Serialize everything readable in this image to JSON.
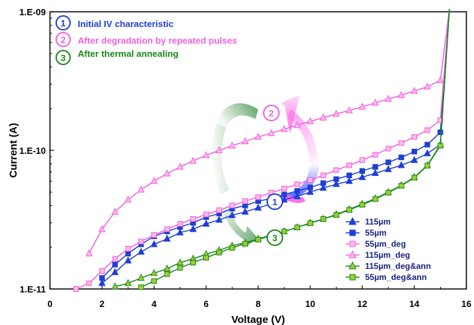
{
  "chart_data": {
    "type": "scatter",
    "xlabel": "Voltage (V)",
    "ylabel": "Current (A)",
    "xlim": [
      0,
      16
    ],
    "ylim": [
      1e-11,
      1e-09
    ],
    "y_scale": "log",
    "x_ticks": [
      "0",
      "2",
      "4",
      "6",
      "8",
      "10",
      "12",
      "14",
      "16"
    ],
    "y_ticks": [
      "1.E-11",
      "1.E-10",
      "1.E-09"
    ],
    "grid": false,
    "legend_position": "bottom-right",
    "annotations": [
      {
        "number": "1",
        "text": "Initial IV characteristic",
        "color": "#1f3fd6"
      },
      {
        "number": "2",
        "text": "After degradation by repeated pulses",
        "color": "#f060e0"
      },
      {
        "number": "3",
        "text": "After thermal annealing",
        "color": "#1a8a1a"
      }
    ],
    "series": [
      {
        "name": "115µm",
        "marker": "triangle",
        "color": "#1f3fd6",
        "fill": "#1f3fd6",
        "x": [
          2.0,
          2.5,
          3.0,
          3.5,
          4.0,
          4.5,
          5.0,
          5.5,
          6.0,
          6.5,
          7.0,
          7.5,
          8.0,
          8.5,
          9.0,
          9.5,
          10.0,
          10.5,
          11.0,
          11.5,
          12.0,
          12.5,
          13.0,
          13.5,
          14.0,
          14.5,
          15.0
        ],
        "y": [
          1.1e-11,
          1.32e-11,
          1.6e-11,
          1.85e-11,
          2.1e-11,
          2.3e-11,
          2.55e-11,
          2.7e-11,
          2.95e-11,
          3.15e-11,
          3.4e-11,
          3.6e-11,
          3.85e-11,
          4.1e-11,
          4.4e-11,
          4.65e-11,
          5e-11,
          5.35e-11,
          5.7e-11,
          6e-11,
          6.4e-11,
          6.85e-11,
          7.3e-11,
          7.8e-11,
          8.5e-11,
          9.5e-11,
          1.1e-10
        ]
      },
      {
        "name": "55µm",
        "marker": "square",
        "color": "#1f3fd6",
        "fill": "#1f3fd6",
        "x": [
          2.0,
          2.5,
          3.0,
          3.5,
          4.0,
          4.5,
          5.0,
          5.5,
          6.0,
          6.5,
          7.0,
          7.5,
          8.0,
          8.5,
          9.0,
          9.5,
          10.0,
          10.5,
          11.0,
          11.5,
          12.0,
          12.5,
          13.0,
          13.5,
          14.0,
          14.5,
          15.0
        ],
        "y": [
          1.2e-11,
          1.5e-11,
          1.8e-11,
          2.1e-11,
          2.4e-11,
          2.6e-11,
          2.8e-11,
          3e-11,
          3.3e-11,
          3.5e-11,
          3.8e-11,
          4e-11,
          4.3e-11,
          4.5e-11,
          4.8e-11,
          5.1e-11,
          5.4e-11,
          5.8e-11,
          6.2e-11,
          6.6e-11,
          7.1e-11,
          7.6e-11,
          8.2e-11,
          8.9e-11,
          9.8e-11,
          1.1e-10,
          1.35e-10
        ]
      },
      {
        "name": "55µm_deg",
        "marker": "square",
        "color": "#f060e0",
        "fill": "#ffb8e8",
        "x": [
          1.0,
          1.5,
          2.0,
          2.5,
          3.0,
          3.5,
          4.0,
          4.5,
          5.0,
          5.5,
          6.0,
          6.5,
          7.0,
          7.5,
          8.0,
          8.5,
          9.0,
          9.5,
          10.0,
          10.5,
          11.0,
          11.5,
          12.0,
          12.5,
          13.0,
          13.5,
          14.0,
          14.5,
          15.0
        ],
        "y": [
          1e-11,
          1.1e-11,
          1.35e-11,
          1.65e-11,
          1.95e-11,
          2.2e-11,
          2.45e-11,
          2.7e-11,
          2.95e-11,
          3.2e-11,
          3.45e-11,
          3.7e-11,
          4e-11,
          4.3e-11,
          4.6e-11,
          4.95e-11,
          5.3e-11,
          5.7e-11,
          6.1e-11,
          6.6e-11,
          7.2e-11,
          7.8e-11,
          8.5e-11,
          9.3e-11,
          1.03e-10,
          1.13e-10,
          1.25e-10,
          1.4e-10,
          1.65e-10
        ]
      },
      {
        "name": "115µm_deg",
        "marker": "triangle",
        "color": "#f060e0",
        "fill": "#ffb8e8",
        "x": [
          1.5,
          2.0,
          2.5,
          3.0,
          3.5,
          4.0,
          4.5,
          5.0,
          5.5,
          6.0,
          6.5,
          7.0,
          7.5,
          8.0,
          8.5,
          9.0,
          9.5,
          10.0,
          10.5,
          11.0,
          11.5,
          12.0,
          12.5,
          13.0,
          13.5,
          14.0,
          14.5,
          15.0
        ],
        "y": [
          1.8e-11,
          2.7e-11,
          3.6e-11,
          4.4e-11,
          5.2e-11,
          6e-11,
          6.8e-11,
          7.6e-11,
          8.4e-11,
          9.2e-11,
          1e-10,
          1.08e-10,
          1.16e-10,
          1.25e-10,
          1.33e-10,
          1.42e-10,
          1.52e-10,
          1.62e-10,
          1.72e-10,
          1.83e-10,
          1.94e-10,
          2.06e-10,
          2.2e-10,
          2.35e-10,
          2.5e-10,
          2.68e-10,
          2.88e-10,
          3.2e-10
        ]
      },
      {
        "name": "115µm_deg&ann",
        "marker": "triangle",
        "color": "#1a8a1a",
        "fill": "#9acd32",
        "x": [
          2.5,
          3.0,
          3.5,
          4.0,
          4.5,
          5.0,
          5.5,
          6.0,
          6.5,
          7.0,
          7.5,
          8.0,
          8.5,
          9.0,
          9.5,
          10.0,
          10.5,
          11.0,
          11.5,
          12.0,
          12.5,
          13.0,
          13.5,
          14.0,
          14.5,
          15.0
        ],
        "y": [
          1.04e-11,
          1.1e-11,
          1.2e-11,
          1.3e-11,
          1.4e-11,
          1.55e-11,
          1.65e-11,
          1.78e-11,
          1.9e-11,
          2.05e-11,
          2.15e-11,
          2.3e-11,
          2.45e-11,
          2.6e-11,
          2.78e-11,
          3e-11,
          3.2e-11,
          3.45e-11,
          3.75e-11,
          4.1e-11,
          4.5e-11,
          5e-11,
          5.6e-11,
          6.4e-11,
          7.8e-11,
          1.1e-10
        ]
      },
      {
        "name": "55µm_deg&ann",
        "marker": "square",
        "color": "#1a8a1a",
        "fill": "#9acd32",
        "x": [
          3.5,
          4.0,
          4.5,
          5.0,
          5.5,
          6.0,
          6.5,
          7.0,
          7.5,
          8.0,
          8.5,
          9.0,
          9.5,
          10.0,
          10.5,
          11.0,
          11.5,
          12.0,
          12.5,
          13.0,
          13.5,
          14.0,
          14.5,
          15.0
        ],
        "y": [
          1.03e-11,
          1.14e-11,
          1.28e-11,
          1.42e-11,
          1.55e-11,
          1.68e-11,
          1.83e-11,
          1.98e-11,
          2.12e-11,
          2.27e-11,
          2.43e-11,
          2.6e-11,
          2.78e-11,
          2.98e-11,
          3.2e-11,
          3.42e-11,
          3.72e-11,
          4.05e-11,
          4.45e-11,
          4.95e-11,
          5.55e-11,
          6.35e-11,
          7.75e-11,
          1.08e-10
        ]
      }
    ]
  }
}
